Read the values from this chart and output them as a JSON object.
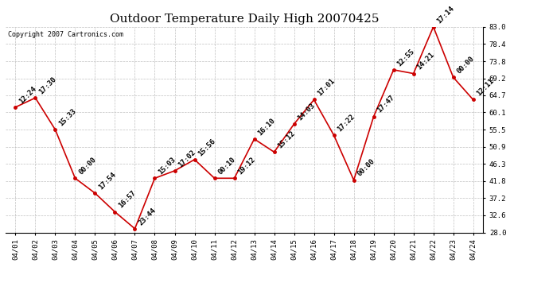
{
  "title": "Outdoor Temperature Daily High 20070425",
  "copyright_text": "Copyright 2007 Cartronics.com",
  "dates": [
    "04/01",
    "04/02",
    "04/03",
    "04/04",
    "04/05",
    "04/06",
    "04/07",
    "04/08",
    "04/09",
    "04/10",
    "04/11",
    "04/12",
    "04/13",
    "04/14",
    "04/15",
    "04/16",
    "04/17",
    "04/18",
    "04/19",
    "04/20",
    "04/21",
    "04/22",
    "04/23",
    "04/24"
  ],
  "values": [
    61.5,
    64.0,
    55.5,
    42.5,
    38.5,
    33.5,
    29.0,
    42.5,
    44.5,
    47.5,
    42.5,
    42.5,
    53.0,
    49.5,
    57.0,
    63.5,
    54.0,
    42.0,
    59.0,
    71.5,
    70.5,
    83.0,
    69.5,
    63.5
  ],
  "time_labels": [
    "12:24",
    "17:30",
    "15:33",
    "00:00",
    "17:54",
    "16:57",
    "23:44",
    "15:03",
    "17:02",
    "15:56",
    "00:10",
    "19:12",
    "16:10",
    "15:12",
    "14:03",
    "17:01",
    "17:22",
    "00:00",
    "17:47",
    "12:55",
    "14:21",
    "17:14",
    "00:00",
    "12:11"
  ],
  "yticks": [
    28.0,
    32.6,
    37.2,
    41.8,
    46.3,
    50.9,
    55.5,
    60.1,
    64.7,
    69.2,
    73.8,
    78.4,
    83.0
  ],
  "line_color": "#cc0000",
  "marker_color": "#cc0000",
  "bg_color": "#ffffff",
  "plot_bg_color": "#ffffff",
  "grid_color": "#c0c0c0",
  "title_fontsize": 11,
  "label_fontsize": 6.5,
  "tick_fontsize": 6.5,
  "copyright_fontsize": 6.0
}
